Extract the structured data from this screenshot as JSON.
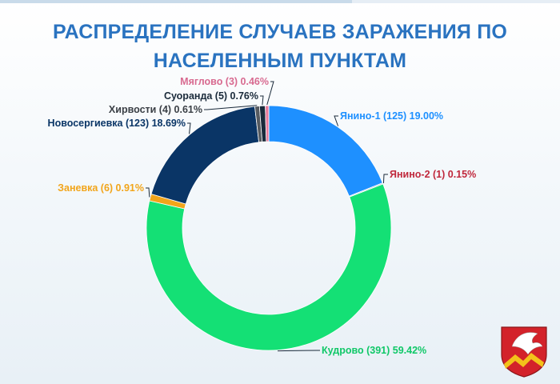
{
  "title_lines": [
    "РАСПРЕДЕЛЕНИЕ СЛУЧАЕВ ЗАРАЖЕНИЯ ПО",
    "НАСЕЛЕННЫМ ПУНКТАМ"
  ],
  "colors": {
    "title": "#2a73c0",
    "background": "#f2f7fb"
  },
  "chart_data": {
    "type": "pie",
    "variant": "donut",
    "title": "РАСПРЕДЕЛЕНИЕ СЛУЧАЕВ ЗАРАЖЕНИЯ ПО НАСЕЛЕННЫМ ПУНКТАМ",
    "slices": [
      {
        "name": "Янино-1",
        "count": 125,
        "percent": 19.0,
        "label": "Янино-1 (125) 19.00%",
        "color": "#1e90ff",
        "label_color": "#1e90ff"
      },
      {
        "name": "Янино-2",
        "count": 1,
        "percent": 0.15,
        "label": "Янино-2 (1) 0.15%",
        "color": "#b0c4d8",
        "label_color": "#c0283c"
      },
      {
        "name": "Кудрово",
        "count": 391,
        "percent": 59.42,
        "label": "Кудрово (391) 59.42%",
        "color": "#14e075",
        "label_color": "#10c868"
      },
      {
        "name": "Заневка",
        "count": 6,
        "percent": 0.91,
        "label": "Заневка (6) 0.91%",
        "color": "#f2a51a",
        "label_color": "#f2a51a"
      },
      {
        "name": "Новосергиевка",
        "count": 123,
        "percent": 18.69,
        "label": "Новосергиевка (123) 18.69%",
        "color": "#0a3566",
        "label_color": "#0a3566"
      },
      {
        "name": "Хирвости",
        "count": 4,
        "percent": 0.61,
        "label": "Хирвости (4) 0.61%",
        "color": "#555a60",
        "label_color": "#3a3f45"
      },
      {
        "name": "Суоранда",
        "count": 5,
        "percent": 0.76,
        "label": "Суоранда (5) 0.76%",
        "color": "#1a2a3a",
        "label_color": "#1a2a3a"
      },
      {
        "name": "Мяглово",
        "count": 3,
        "percent": 0.46,
        "label": "Мяглово (3) 0.46%",
        "color": "#e87a9c",
        "label_color": "#d86a90"
      }
    ]
  }
}
